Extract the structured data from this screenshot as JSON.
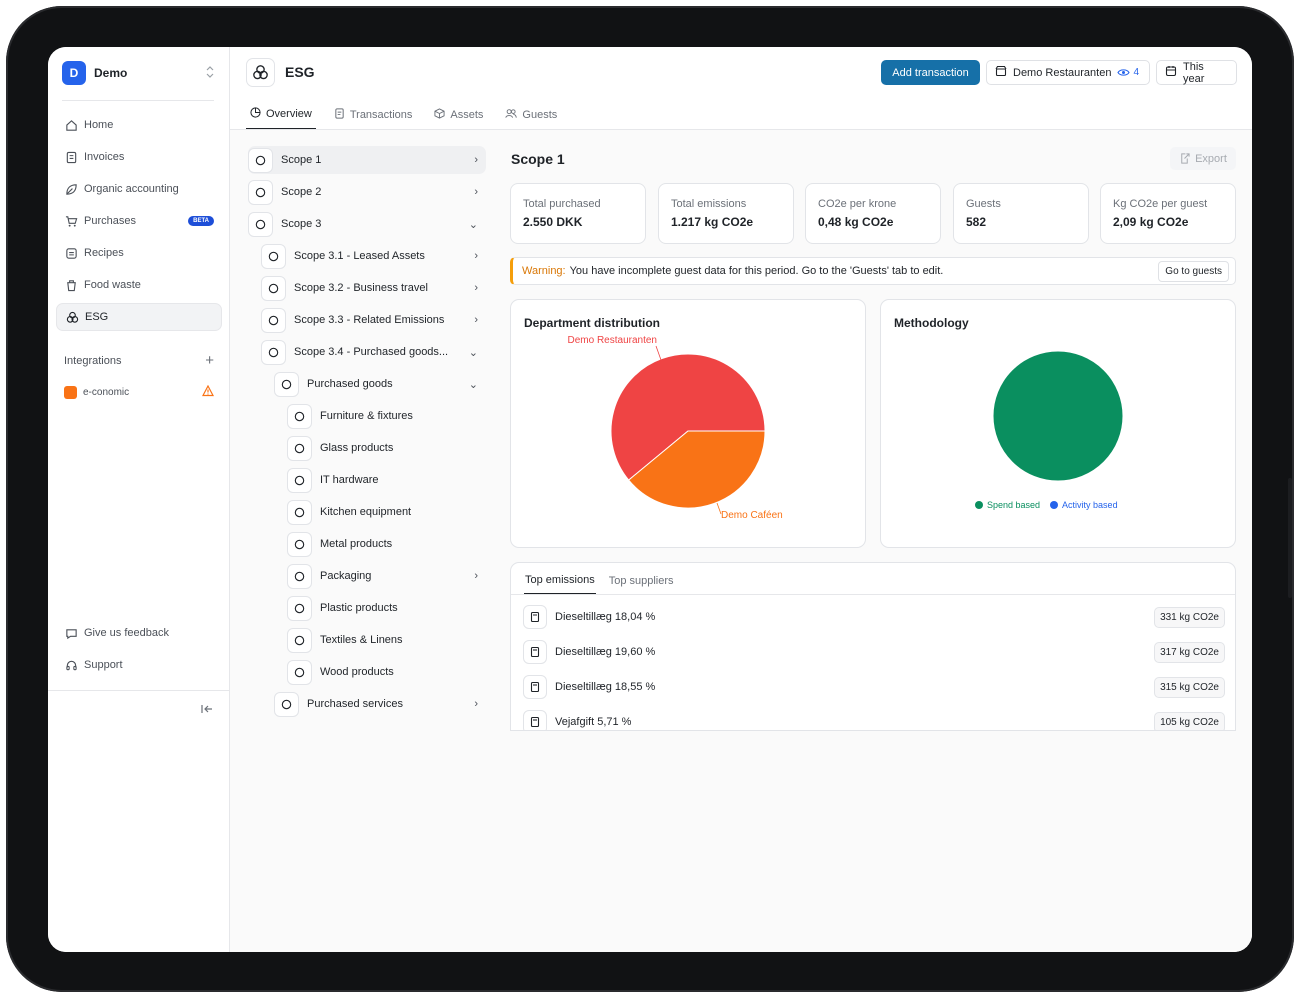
{
  "org": {
    "initial": "D",
    "name": "Demo"
  },
  "sidebar": {
    "items": [
      {
        "label": "Home",
        "icon": "home-icon"
      },
      {
        "label": "Invoices",
        "icon": "invoice-icon"
      },
      {
        "label": "Organic accounting",
        "icon": "leaf-icon"
      },
      {
        "label": "Purchases",
        "icon": "cart-icon",
        "badge": "BETA"
      },
      {
        "label": "Recipes",
        "icon": "recipe-icon"
      },
      {
        "label": "Food waste",
        "icon": "trash-icon"
      },
      {
        "label": "ESG",
        "icon": "esg-icon",
        "active": true
      }
    ],
    "integrations_label": "Integrations",
    "integration": {
      "label": "e-conomic"
    },
    "bottom": [
      {
        "label": "Give us feedback",
        "icon": "feedback-icon"
      },
      {
        "label": "Support",
        "icon": "support-icon"
      }
    ]
  },
  "header": {
    "title": "ESG",
    "add_transaction": "Add transaction",
    "location": "Demo Restauranten",
    "viewers": "4",
    "period": "This year"
  },
  "tabs": [
    "Overview",
    "Transactions",
    "Assets",
    "Guests"
  ],
  "tree": [
    {
      "label": "Scope 1",
      "chev": "›"
    },
    {
      "label": "Scope 2",
      "chev": "›"
    },
    {
      "label": "Scope 3",
      "chev": "⌄"
    },
    {
      "label": "Scope 3.1 - Leased Assets",
      "chev": "›"
    },
    {
      "label": "Scope 3.2 - Business travel",
      "chev": "›"
    },
    {
      "label": "Scope 3.3 - Related Emissions",
      "chev": "›"
    },
    {
      "label": "Scope 3.4 - Purchased goods...",
      "chev": "⌄"
    },
    {
      "label": "Purchased goods",
      "chev": "⌄"
    },
    {
      "label": "Furniture & fixtures",
      "chev": ""
    },
    {
      "label": "Glass products",
      "chev": ""
    },
    {
      "label": "IT hardware",
      "chev": ""
    },
    {
      "label": "Kitchen equipment",
      "chev": ""
    },
    {
      "label": "Metal products",
      "chev": ""
    },
    {
      "label": "Packaging",
      "chev": "›"
    },
    {
      "label": "Plastic products",
      "chev": ""
    },
    {
      "label": "Textiles & Linens",
      "chev": ""
    },
    {
      "label": "Wood products",
      "chev": ""
    },
    {
      "label": "Purchased services",
      "chev": "›"
    }
  ],
  "scope": {
    "title": "Scope 1",
    "export": "Export",
    "stats": [
      {
        "label": "Total purchased",
        "value": "2.550 DKK"
      },
      {
        "label": "Total emissions",
        "value": "1.217 kg CO2e"
      },
      {
        "label": "CO2e per krone",
        "value": "0,48 kg CO2e"
      },
      {
        "label": "Guests",
        "value": "582"
      },
      {
        "label": "Kg CO2e per guest",
        "value": "2,09 kg CO2e"
      }
    ],
    "warning_label": "Warning:",
    "warning_text": "You have incomplete guest data for this period. Go to the 'Guests' tab to edit.",
    "warning_button": "Go to guests"
  },
  "colors": {
    "accent": "#1670a8",
    "red": "#ef4444",
    "orange": "#f97316",
    "green": "#0a8f5f",
    "blue": "#2563eb"
  },
  "chart_data": [
    {
      "type": "pie",
      "title": "Department distribution",
      "categories": [
        "Demo Restauranten",
        "Demo Caféen"
      ],
      "values": [
        61,
        39
      ],
      "colors": [
        "#ef4444",
        "#f97316"
      ]
    },
    {
      "type": "pie",
      "title": "Methodology",
      "categories": [
        "Spend based",
        "Activity based"
      ],
      "values": [
        100,
        0
      ],
      "colors": [
        "#0a8f5f",
        "#2563eb"
      ]
    }
  ],
  "emissions": {
    "tabs": [
      "Top emissions",
      "Top suppliers"
    ],
    "rows": [
      {
        "label": "Dieseltillæg 18,04 %",
        "value": "331 kg CO2e"
      },
      {
        "label": "Dieseltillæg 19,60 %",
        "value": "317 kg CO2e"
      },
      {
        "label": "Dieseltillæg 18,55 %",
        "value": "315 kg CO2e"
      },
      {
        "label": "Vejafgift 5,71 %",
        "value": "105 kg CO2e"
      }
    ]
  }
}
